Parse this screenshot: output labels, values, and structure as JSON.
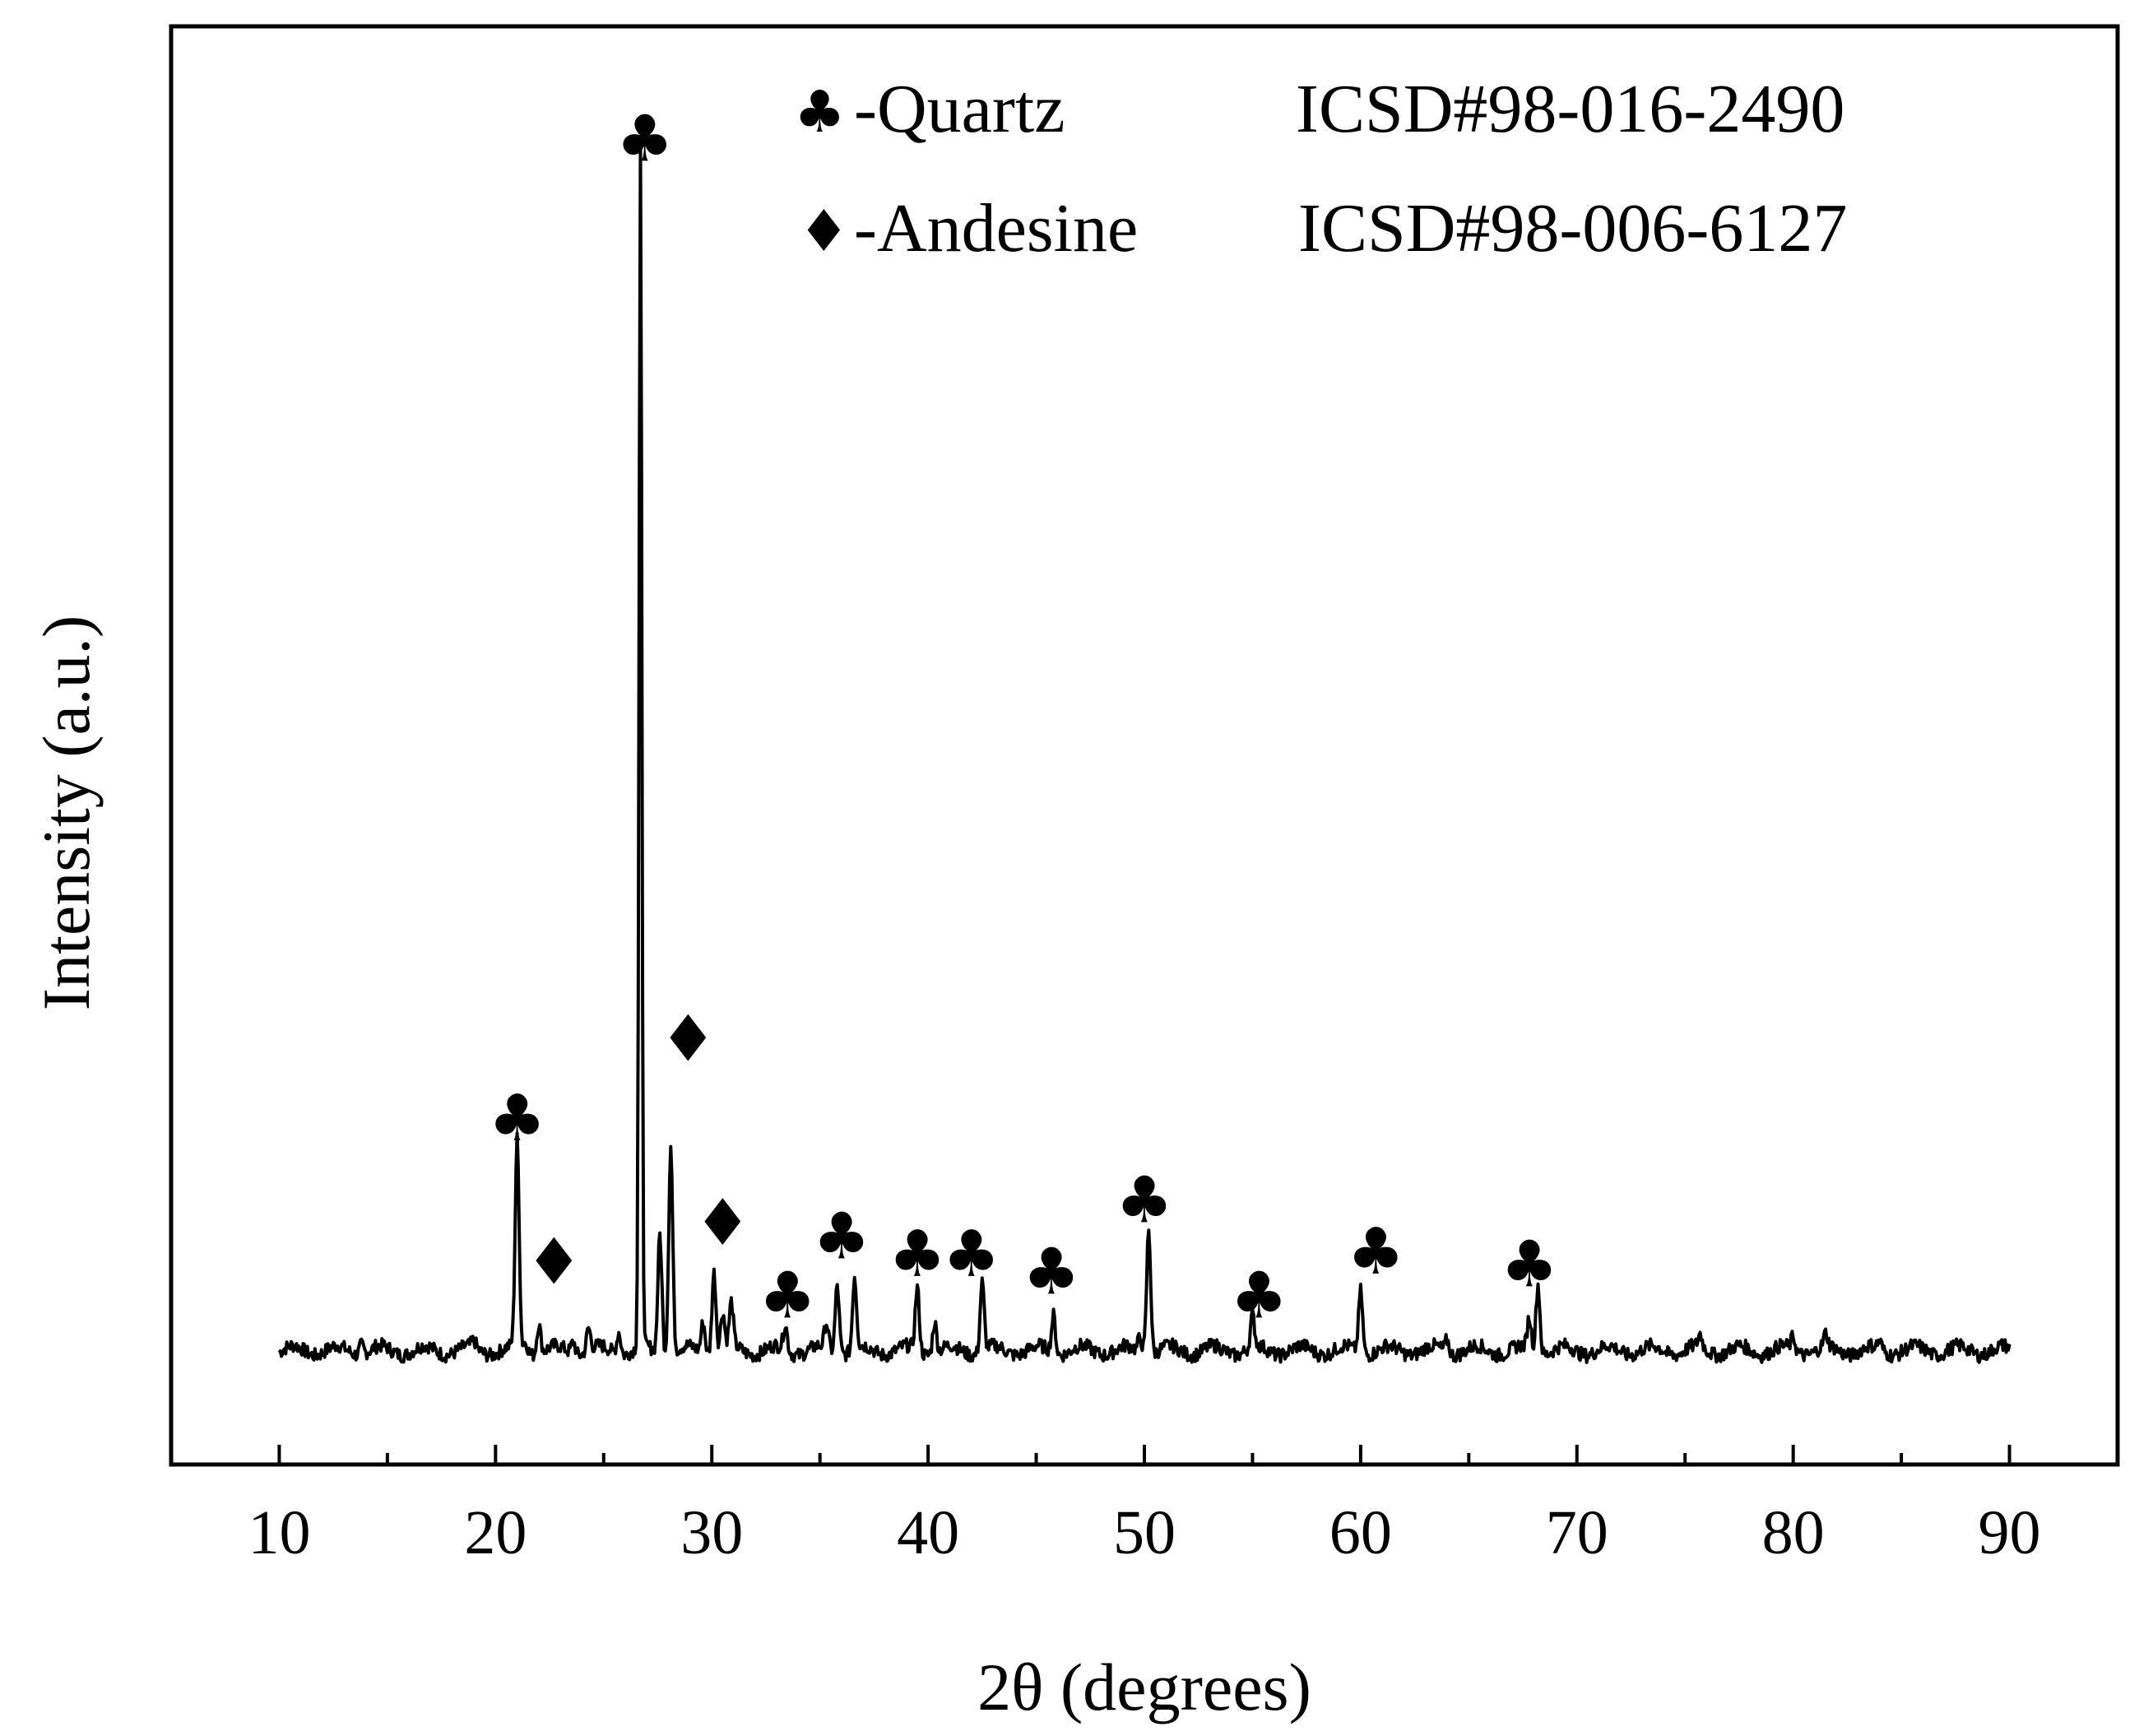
{
  "chart_data": {
    "type": "line",
    "xlabel": "2θ (degrees)",
    "ylabel": "Intensity (a.u.)",
    "xlim": [
      5,
      95
    ],
    "ylim": [
      0,
      100
    ],
    "x_ticks": [
      "10",
      "20",
      "30",
      "40",
      "50",
      "60",
      "70",
      "80",
      "90"
    ],
    "legend": {
      "position": "top-right",
      "entries": [
        {
          "marker": "♣",
          "name": "-Quartz",
          "code": "ICSD#98-016-2490"
        },
        {
          "marker": "♦",
          "name": "-Andesine",
          "code": "ICSD#98-006-6127"
        }
      ]
    },
    "series": {
      "baseline": 2,
      "peaks": [
        {
          "x": 13.8,
          "h": 0.8
        },
        {
          "x": 19.0,
          "h": 0.5
        },
        {
          "x": 21.0,
          "h": 16.5
        },
        {
          "x": 21.4,
          "h": 0.8
        },
        {
          "x": 22.0,
          "h": 2.4
        },
        {
          "x": 23.6,
          "h": 1.0
        },
        {
          "x": 24.3,
          "h": 1.8
        },
        {
          "x": 25.7,
          "h": 1.8
        },
        {
          "x": 26.7,
          "h": 95.0
        },
        {
          "x": 27.6,
          "h": 9.5
        },
        {
          "x": 28.1,
          "h": 16.5
        },
        {
          "x": 29.6,
          "h": 2.5
        },
        {
          "x": 30.1,
          "h": 6.5
        },
        {
          "x": 30.5,
          "h": 3.0
        },
        {
          "x": 30.9,
          "h": 3.5
        },
        {
          "x": 33.4,
          "h": 2.0
        },
        {
          "x": 35.3,
          "h": 2.0
        },
        {
          "x": 35.8,
          "h": 5.5
        },
        {
          "x": 36.6,
          "h": 5.8
        },
        {
          "x": 39.5,
          "h": 5.0
        },
        {
          "x": 40.3,
          "h": 2.5
        },
        {
          "x": 42.5,
          "h": 5.5
        },
        {
          "x": 45.8,
          "h": 3.0
        },
        {
          "x": 49.8,
          "h": 1.2
        },
        {
          "x": 50.2,
          "h": 10.0
        },
        {
          "x": 55.0,
          "h": 2.5
        },
        {
          "x": 60.0,
          "h": 5.0
        },
        {
          "x": 64.0,
          "h": 1.0
        },
        {
          "x": 67.8,
          "h": 2.5
        },
        {
          "x": 68.2,
          "h": 5.5
        },
        {
          "x": 75.7,
          "h": 1.0
        },
        {
          "x": 80.0,
          "h": 1.0
        },
        {
          "x": 81.5,
          "h": 1.0
        },
        {
          "x": 84.0,
          "h": 0.6
        }
      ]
    },
    "annotations": [
      {
        "marker": "♣",
        "x": 21.0,
        "y": 18.7
      },
      {
        "marker": "♦",
        "x": 22.7,
        "y": 7.3
      },
      {
        "marker": "♣",
        "x": 26.9,
        "y": 96.5
      },
      {
        "marker": "♦",
        "x": 28.9,
        "y": 25.0
      },
      {
        "marker": "♦",
        "x": 30.5,
        "y": 10.4
      },
      {
        "marker": "♣",
        "x": 33.5,
        "y": 4.6
      },
      {
        "marker": "♣",
        "x": 36.0,
        "y": 9.3
      },
      {
        "marker": "♣",
        "x": 39.5,
        "y": 7.9
      },
      {
        "marker": "♣",
        "x": 42.0,
        "y": 7.9
      },
      {
        "marker": "♣",
        "x": 45.7,
        "y": 6.5
      },
      {
        "marker": "♣",
        "x": 50.0,
        "y": 12.2
      },
      {
        "marker": "♣",
        "x": 55.3,
        "y": 4.6
      },
      {
        "marker": "♣",
        "x": 60.7,
        "y": 8.1
      },
      {
        "marker": "♣",
        "x": 67.8,
        "y": 7.1
      }
    ]
  }
}
